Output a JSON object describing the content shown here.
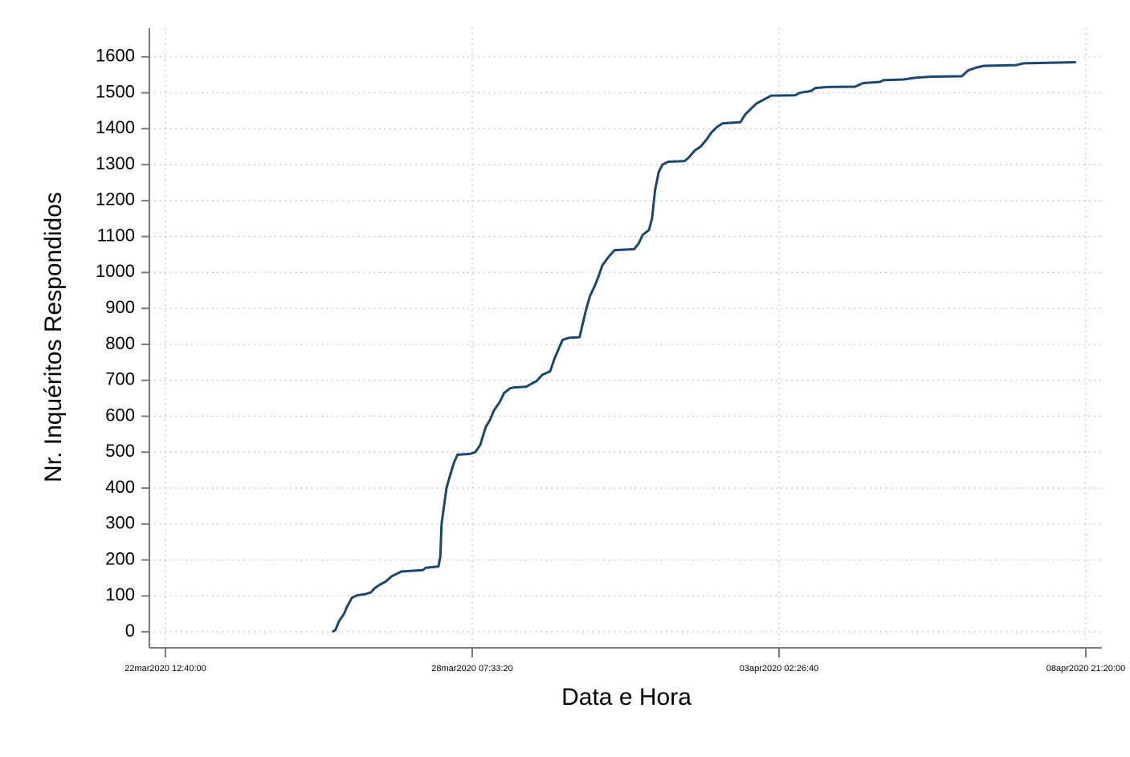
{
  "chart_data": {
    "type": "line",
    "x_label": "Data e Hora",
    "y_label": "Nr. Inquéritos Respondidos",
    "x": [
      1900772000000,
      1900777000000,
      1900783000000,
      1900791000000,
      1900796000000,
      1900804000000,
      1900813000000,
      1900826000000,
      1900835000000,
      1900840000000,
      1900848000000,
      1900859000000,
      1900869000000,
      1900885000000,
      1900904000000,
      1900920000000,
      1900924000000,
      1900945000000,
      1900948000000,
      1900950000000,
      1900954000000,
      1900958000000,
      1900963000000,
      1900970000000,
      1900976000000,
      1900996000000,
      1901005000000,
      1901013000000,
      1901022000000,
      1901029000000,
      1901035000000,
      1901045000000,
      1901052000000,
      1901062000000,
      1901068000000,
      1901088000000,
      1901094000000,
      1901105000000,
      1901114000000,
      1901127000000,
      1901134000000,
      1901147000000,
      1901157000000,
      1901175000000,
      1901179000000,
      1901186000000,
      1901192000000,
      1901199000000,
      1901206000000,
      1901212000000,
      1901223000000,
      1901232000000,
      1901264000000,
      1901271000000,
      1901278000000,
      1901288000000,
      1901293000000,
      1901298000000,
      1901304000000,
      1901310000000,
      1901319000000,
      1901346000000,
      1901353000000,
      1901363000000,
      1901372000000,
      1901382000000,
      1901390000000,
      1901399000000,
      1901408000000,
      1901437000000,
      1901445000000,
      1901454000000,
      1901463000000,
      1901474000000,
      1901487000000,
      1901526000000,
      1901534000000,
      1901552000000,
      1901559000000,
      1901579000000,
      1901624000000,
      1901637000000,
      1901664000000,
      1901670000000,
      1901703000000,
      1901723000000,
      1901749000000,
      1901798000000,
      1901808000000,
      1901821000000,
      1901834000000,
      1901886000000,
      1901899000000,
      1901984000000
    ],
    "series": [
      {
        "color": "#1a476f",
        "values": [
          0,
          5,
          30,
          50,
          70,
          95,
          102,
          105,
          110,
          120,
          130,
          140,
          155,
          168,
          170,
          172,
          178,
          182,
          210,
          300,
          350,
          400,
          430,
          470,
          493,
          495,
          500,
          520,
          570,
          590,
          615,
          640,
          665,
          678,
          680,
          682,
          688,
          698,
          715,
          725,
          760,
          812,
          818,
          820,
          850,
          900,
          935,
          960,
          990,
          1020,
          1045,
          1062,
          1065,
          1080,
          1105,
          1118,
          1150,
          1230,
          1280,
          1300,
          1308,
          1310,
          1320,
          1340,
          1350,
          1370,
          1390,
          1405,
          1415,
          1418,
          1440,
          1455,
          1470,
          1480,
          1492,
          1493,
          1500,
          1505,
          1513,
          1516,
          1517,
          1527,
          1530,
          1535,
          1537,
          1542,
          1545,
          1546,
          1562,
          1570,
          1575,
          1577,
          1582,
          1585
        ]
      }
    ],
    "xlim": [
      1900473800000,
      1902026200000
    ],
    "xticks": [
      {
        "value": 1900500000000,
        "label": "22mar2020 12:40:00"
      },
      {
        "value": 1901000000000,
        "label": "28mar2020 07:33:20"
      },
      {
        "value": 1901500000000,
        "label": "03apr2020 02:26:40"
      },
      {
        "value": 1902000000000,
        "label": "08apr2020 21:20:00"
      }
    ],
    "ylim": [
      -40,
      1680
    ],
    "yticks": [
      0,
      100,
      200,
      300,
      400,
      500,
      600,
      700,
      800,
      900,
      1000,
      1100,
      1200,
      1300,
      1400,
      1500,
      1600
    ],
    "grid": true
  }
}
